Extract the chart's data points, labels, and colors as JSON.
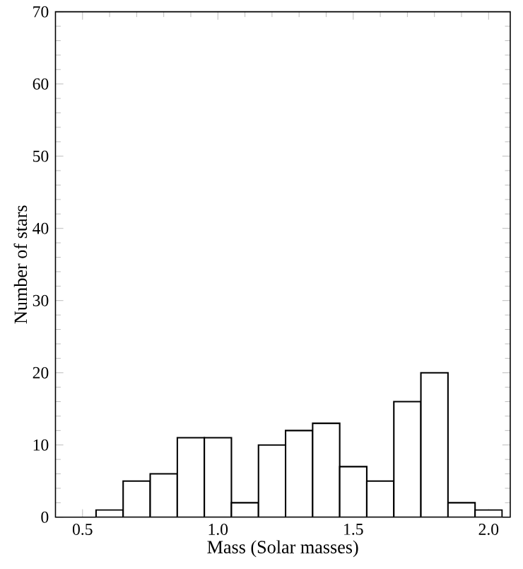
{
  "chart_data": {
    "type": "histogram",
    "xlabel": "Mass (Solar masses)",
    "ylabel": "Number of stars",
    "bins": [
      0.55,
      0.65,
      0.75,
      0.85,
      0.95,
      1.05,
      1.15,
      1.25,
      1.35,
      1.45,
      1.55,
      1.65,
      1.75,
      1.85,
      1.95,
      2.05
    ],
    "values": [
      1,
      5,
      6,
      11,
      11,
      2,
      10,
      12,
      13,
      7,
      5,
      16,
      20,
      2,
      1
    ],
    "color": "#000000",
    "xlim": [
      0.4,
      2.08
    ],
    "ylim": [
      0,
      70
    ],
    "xticks": [
      0.5,
      {
        "value": 1.0,
        "label": "1.0"
      },
      1.5,
      {
        "value": 2.0,
        "label": "2.0"
      }
    ],
    "yticks": [
      0,
      10,
      20,
      30,
      40,
      50,
      60,
      70
    ],
    "grid": false
  }
}
